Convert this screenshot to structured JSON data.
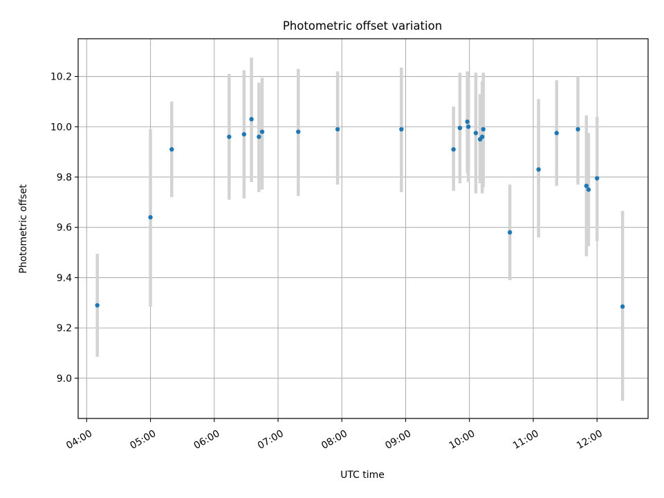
{
  "chart_data": {
    "type": "scatter",
    "title": "Photometric offset variation",
    "xlabel": "UTC time",
    "ylabel": "Photometric offset",
    "x_is_time": true,
    "xlim": [
      "03:52",
      "12:48"
    ],
    "ylim": [
      8.84,
      10.35
    ],
    "xticks": [
      "04:00",
      "05:00",
      "06:00",
      "07:00",
      "08:00",
      "09:00",
      "10:00",
      "11:00",
      "12:00"
    ],
    "yticks": [
      9.0,
      9.2,
      9.4,
      9.6,
      9.8,
      10.0,
      10.2
    ],
    "ytick_labels": [
      "9.0",
      "9.2",
      "9.4",
      "9.6",
      "9.8",
      "10.0",
      "10.2"
    ],
    "grid": true,
    "point_color": "#1f77b4",
    "errorbar_color": "#d3d3d3",
    "points": [
      {
        "x": "04:10",
        "y": 9.29,
        "lo": 9.085,
        "hi": 9.495
      },
      {
        "x": "05:00",
        "y": 9.64,
        "lo": 9.285,
        "hi": 9.99
      },
      {
        "x": "05:20",
        "y": 9.91,
        "lo": 9.72,
        "hi": 10.1
      },
      {
        "x": "06:14",
        "y": 9.96,
        "lo": 9.71,
        "hi": 10.21
      },
      {
        "x": "06:28",
        "y": 9.97,
        "lo": 9.715,
        "hi": 10.225
      },
      {
        "x": "06:35",
        "y": 10.03,
        "lo": 9.78,
        "hi": 10.275
      },
      {
        "x": "06:42",
        "y": 9.96,
        "lo": 9.74,
        "hi": 10.175
      },
      {
        "x": "06:45",
        "y": 9.98,
        "lo": 9.75,
        "hi": 10.195
      },
      {
        "x": "07:19",
        "y": 9.98,
        "lo": 9.725,
        "hi": 10.23
      },
      {
        "x": "07:56",
        "y": 9.99,
        "lo": 9.77,
        "hi": 10.22
      },
      {
        "x": "08:56",
        "y": 9.99,
        "lo": 9.74,
        "hi": 10.235
      },
      {
        "x": "09:45",
        "y": 9.91,
        "lo": 9.745,
        "hi": 10.08
      },
      {
        "x": "09:51",
        "y": 9.995,
        "lo": 9.775,
        "hi": 10.215
      },
      {
        "x": "09:58",
        "y": 10.02,
        "lo": 9.815,
        "hi": 10.22
      },
      {
        "x": "09:59",
        "y": 10.0,
        "lo": 9.78,
        "hi": 10.2
      },
      {
        "x": "10:06",
        "y": 9.975,
        "lo": 9.735,
        "hi": 10.215
      },
      {
        "x": "10:10",
        "y": 9.95,
        "lo": 9.775,
        "hi": 10.13
      },
      {
        "x": "10:12",
        "y": 9.96,
        "lo": 9.735,
        "hi": 10.18
      },
      {
        "x": "10:13",
        "y": 9.99,
        "lo": 9.76,
        "hi": 10.215
      },
      {
        "x": "10:38",
        "y": 9.58,
        "lo": 9.39,
        "hi": 9.77
      },
      {
        "x": "11:05",
        "y": 9.83,
        "lo": 9.56,
        "hi": 10.11
      },
      {
        "x": "11:22",
        "y": 9.975,
        "lo": 9.765,
        "hi": 10.185
      },
      {
        "x": "11:42",
        "y": 9.99,
        "lo": 9.77,
        "hi": 10.2
      },
      {
        "x": "11:50",
        "y": 9.765,
        "lo": 9.485,
        "hi": 10.045
      },
      {
        "x": "11:52",
        "y": 9.75,
        "lo": 9.525,
        "hi": 9.975
      },
      {
        "x": "12:00",
        "y": 9.795,
        "lo": 9.545,
        "hi": 10.04
      },
      {
        "x": "12:24",
        "y": 9.285,
        "lo": 8.91,
        "hi": 9.665
      }
    ]
  }
}
